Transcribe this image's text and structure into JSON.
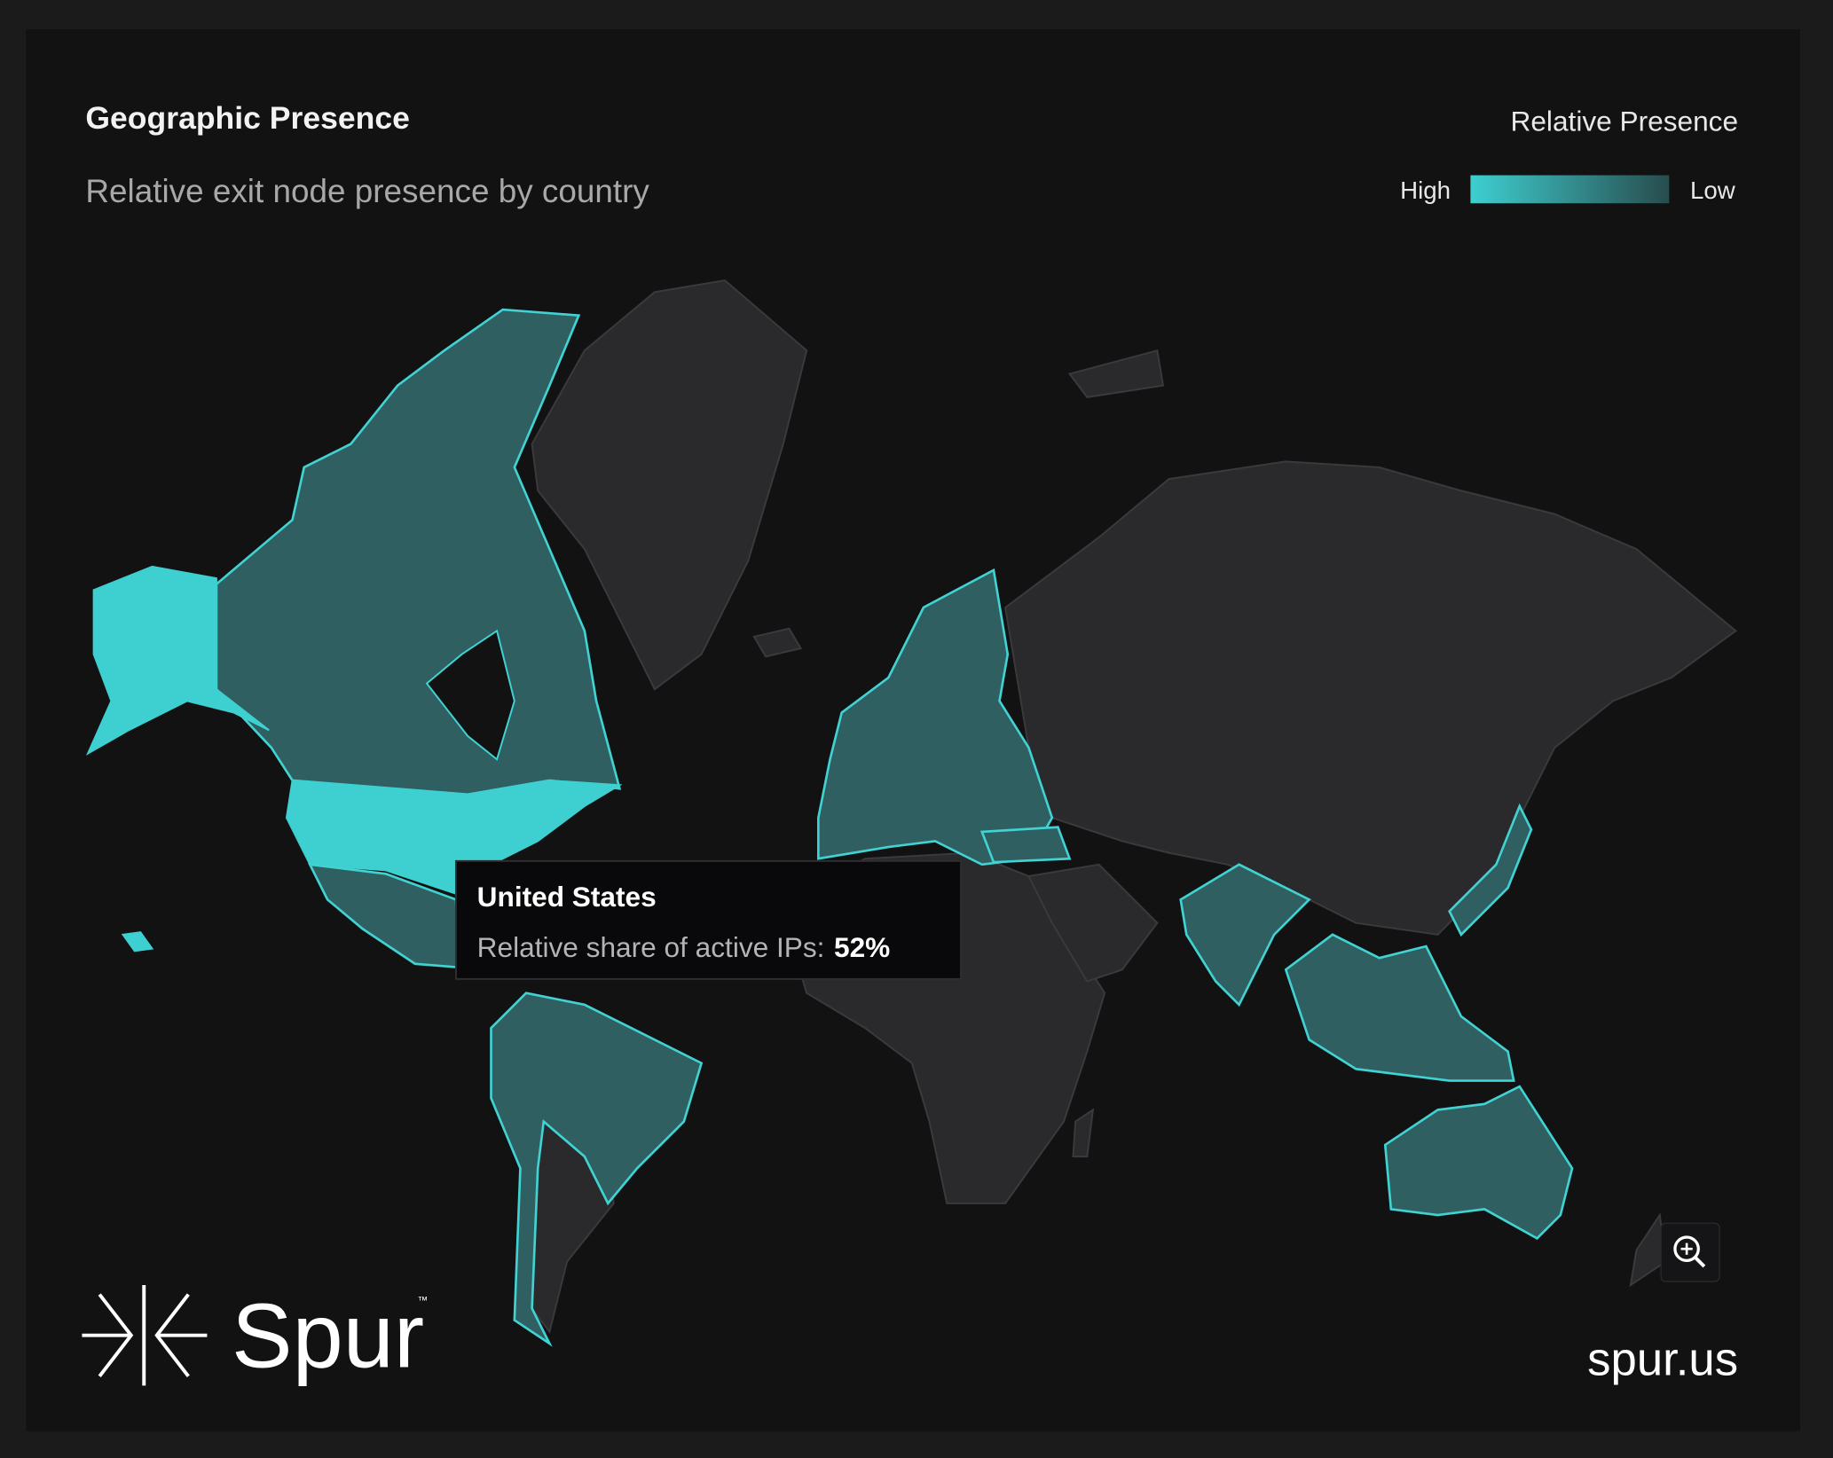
{
  "header": {
    "title": "Geographic Presence",
    "subtitle": "Relative exit node presence by country"
  },
  "legend": {
    "title": "Relative Presence",
    "high": "High",
    "low": "Low"
  },
  "tooltip": {
    "country": "United States",
    "label": "Relative share of active IPs:",
    "value": "52%"
  },
  "footer": {
    "brand": "Spur",
    "trademark": "™",
    "url": "spur.us"
  }
}
